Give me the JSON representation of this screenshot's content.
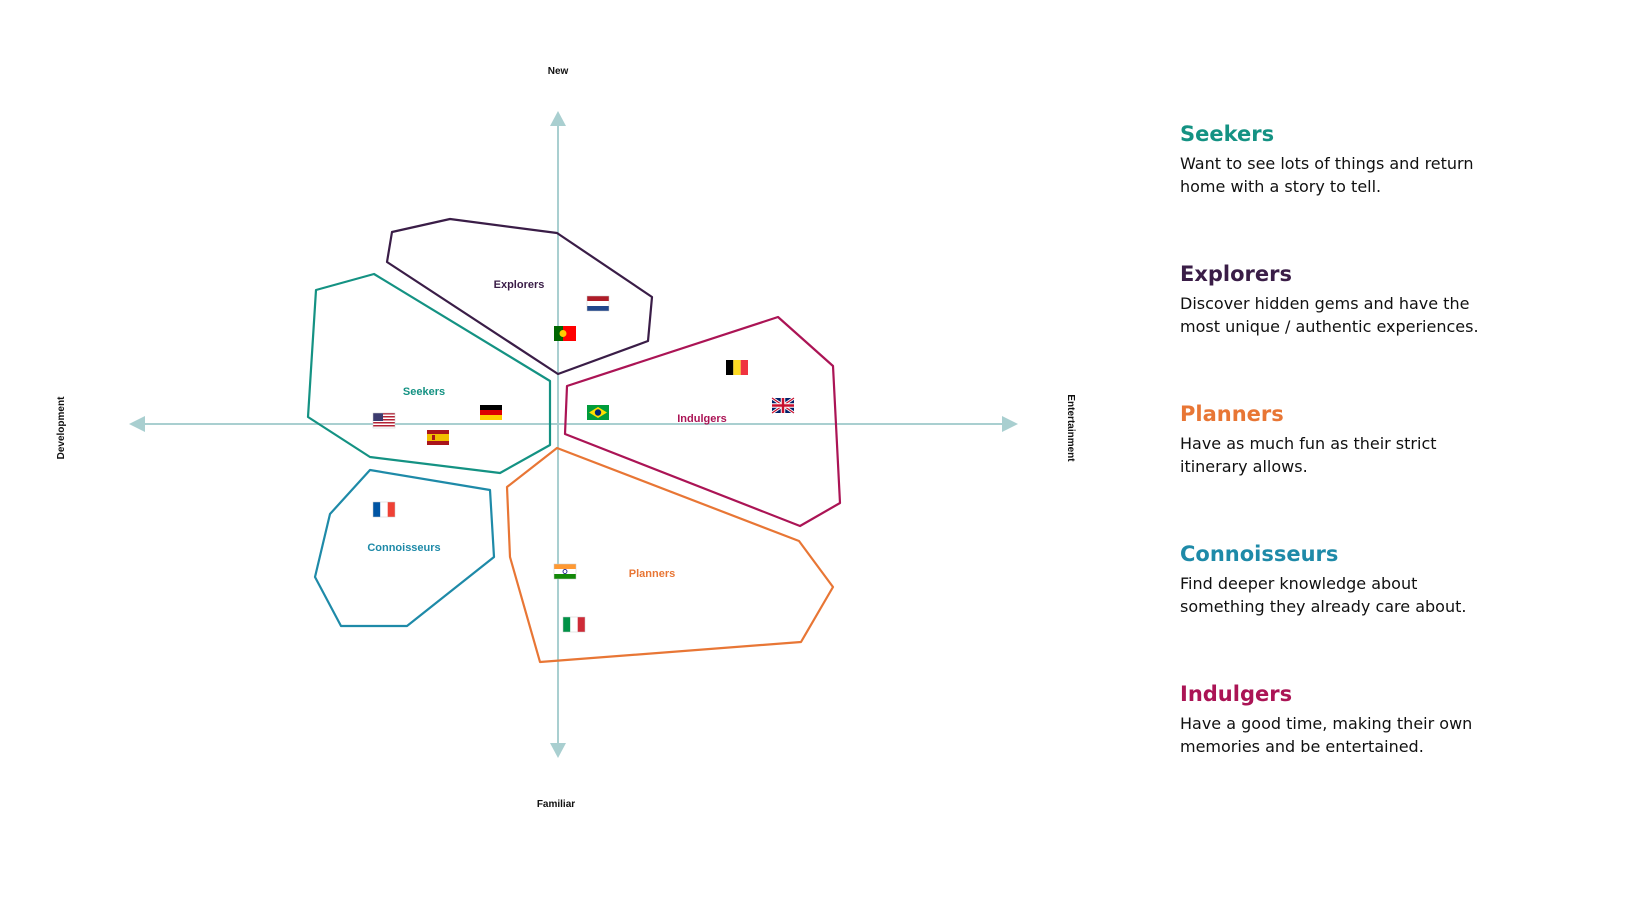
{
  "axes": {
    "top": "New",
    "bottom": "Familiar",
    "left": "Development",
    "right": "Entertainment",
    "color": "#a9cfd0"
  },
  "clusters": [
    {
      "id": "explorers",
      "label": "Explorers",
      "color": "#3a1d47",
      "flags": [
        "netherlands-flag-icon",
        "portugal-flag-icon"
      ]
    },
    {
      "id": "seekers",
      "label": "Seekers",
      "color": "#149283",
      "flags": [
        "usa-flag-icon",
        "germany-flag-icon",
        "spain-flag-icon"
      ]
    },
    {
      "id": "indulgers",
      "label": "Indulgers",
      "color": "#ab1455",
      "flags": [
        "belgium-flag-icon",
        "brazil-flag-icon",
        "uk-flag-icon"
      ]
    },
    {
      "id": "connoisseurs",
      "label": "Connoisseurs",
      "color": "#1e8aa8",
      "flags": [
        "france-flag-icon"
      ]
    },
    {
      "id": "planners",
      "label": "Planners",
      "color": "#e87635",
      "flags": [
        "india-flag-icon",
        "italy-flag-icon"
      ]
    }
  ],
  "legend": [
    {
      "title": "Seekers",
      "color": "#149283",
      "desc": "Want to see lots of things and return home with a story to tell."
    },
    {
      "title": "Explorers",
      "color": "#3a1d47",
      "desc": "Discover hidden gems and have the most unique / authentic experiences."
    },
    {
      "title": "Planners",
      "color": "#e87635",
      "desc": "Have as much fun as their strict itinerary allows."
    },
    {
      "title": "Connoisseurs",
      "color": "#1e8aa8",
      "desc": "Find deeper knowledge about something they already care about."
    },
    {
      "title": "Indulgers",
      "color": "#ab1455",
      "desc": "Have a good time, making their own memories and be entertained."
    }
  ]
}
